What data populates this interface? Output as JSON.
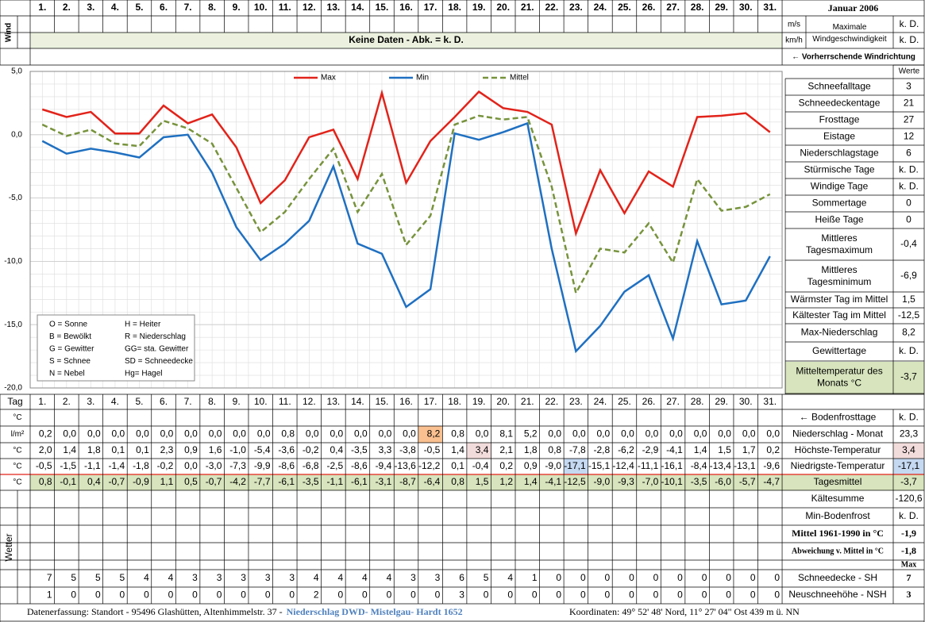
{
  "title": "Januar 2006",
  "wind": {
    "label": "Wind",
    "unit_ms": "m/s",
    "unit_kmh": "km/h",
    "max_label": [
      "Maximale",
      "Windgeschwindigkeit"
    ],
    "value_ms": "k. D.",
    "value_kmh": "k. D.",
    "no_data": "Keine Daten - Abk. = k. D.",
    "direction": "← Vorherrschende Windrichtung"
  },
  "chart_data": {
    "type": "line",
    "categories": [
      "1.",
      "2.",
      "3.",
      "4.",
      "5.",
      "6.",
      "7.",
      "8.",
      "9.",
      "10.",
      "11.",
      "12.",
      "13.",
      "14.",
      "15.",
      "16.",
      "17.",
      "18.",
      "19.",
      "20.",
      "21.",
      "22.",
      "23.",
      "24.",
      "25.",
      "26.",
      "27.",
      "28.",
      "29.",
      "30.",
      "31."
    ],
    "ylim": [
      -20,
      5
    ],
    "yticks": [
      {
        "value": 5,
        "label": "5,0"
      },
      {
        "value": 0,
        "label": "0,0"
      },
      {
        "value": -5,
        "label": "-5,0"
      },
      {
        "value": -10,
        "label": "-10,0"
      },
      {
        "value": -15,
        "label": "-15,0"
      },
      {
        "value": -20,
        "label": "-20,0"
      }
    ],
    "grid": true,
    "series": [
      {
        "name": "Max",
        "color": "#e2231a",
        "dashed": false,
        "values": [
          2.0,
          1.4,
          1.8,
          0.1,
          0.1,
          2.3,
          0.9,
          1.6,
          -1.0,
          -5.4,
          -3.6,
          -0.2,
          0.4,
          -3.5,
          3.3,
          -3.8,
          -0.5,
          1.4,
          3.4,
          2.1,
          1.8,
          0.8,
          -7.8,
          -2.8,
          -6.2,
          -2.9,
          -4.1,
          1.4,
          1.5,
          1.7,
          0.2
        ],
        "value_labels": [
          "2,0",
          "1,4",
          "1,8",
          "0,1",
          "0,1",
          "2,3",
          "0,9",
          "1,6",
          "-1,0",
          "-5,4",
          "-3,6",
          "-0,2",
          "0,4",
          "-3,5",
          "3,3",
          "-3,8",
          "-0,5",
          "1,4",
          "3,4",
          "2,1",
          "1,8",
          "0,8",
          "-7,8",
          "-2,8",
          "-6,2",
          "-2,9",
          "-4,1",
          "1,4",
          "1,5",
          "1,7",
          "0,2"
        ]
      },
      {
        "name": "Min",
        "color": "#1f70c1",
        "dashed": false,
        "values": [
          -0.5,
          -1.5,
          -1.1,
          -1.4,
          -1.8,
          -0.2,
          0.0,
          -3.0,
          -7.3,
          -9.9,
          -8.6,
          -6.8,
          -2.5,
          -8.6,
          -9.4,
          -13.6,
          -12.2,
          0.1,
          -0.4,
          0.2,
          0.9,
          -9.0,
          -17.1,
          -15.1,
          -12.4,
          -11.1,
          -16.1,
          -8.4,
          -13.4,
          -13.1,
          -9.6
        ],
        "value_labels": [
          "-0,5",
          "-1,5",
          "-1,1",
          "-1,4",
          "-1,8",
          "-0,2",
          "0,0",
          "-3,0",
          "-7,3",
          "-9,9",
          "-8,6",
          "-6,8",
          "-2,5",
          "-8,6",
          "-9,4",
          "-13,6",
          "-12,2",
          "0,1",
          "-0,4",
          "0,2",
          "0,9",
          "-9,0",
          "-17,1",
          "-15,1",
          "-12,4",
          "-11,1",
          "-16,1",
          "-8,4",
          "-13,4",
          "-13,1",
          "-9,6"
        ]
      },
      {
        "name": "Mittel",
        "color": "#77933c",
        "dashed": true,
        "values": [
          0.8,
          -0.1,
          0.4,
          -0.7,
          -0.9,
          1.1,
          0.5,
          -0.7,
          -4.2,
          -7.7,
          -6.1,
          -3.5,
          -1.1,
          -6.1,
          -3.1,
          -8.7,
          -6.4,
          0.8,
          1.5,
          1.2,
          1.4,
          -4.1,
          -12.5,
          -9.0,
          -9.3,
          -7.0,
          -10.1,
          -3.5,
          -6.0,
          -5.7,
          -4.7
        ],
        "value_labels": [
          "0,8",
          "-0,1",
          "0,4",
          "-0,7",
          "-0,9",
          "1,1",
          "0,5",
          "-0,7",
          "-4,2",
          "-7,7",
          "-6,1",
          "-3,5",
          "-1,1",
          "-6,1",
          "-3,1",
          "-8,7",
          "-6,4",
          "0,8",
          "1,5",
          "1,2",
          "1,4",
          "-4,1",
          "-12,5",
          "-9,0",
          "-9,3",
          "-7,0",
          "-10,1",
          "-3,5",
          "-6,0",
          "-5,7",
          "-4,7"
        ]
      }
    ]
  },
  "weather_codes": [
    [
      "O = Sonne",
      "H = Heiter"
    ],
    [
      "B = Bewölkt",
      "R = Niederschlag"
    ],
    [
      "G = Gewitter",
      "GG= sta. Gewitter"
    ],
    [
      "S = Schnee",
      "SD = Schneedecke"
    ],
    [
      "N = Nebel",
      "Hg= Hagel"
    ]
  ],
  "stats_header": "Werte",
  "stats": [
    {
      "label": "Schneefalltage",
      "value": "3"
    },
    {
      "label": "Schneedeckentage",
      "value": "21"
    },
    {
      "label": "Frosttage",
      "value": "27"
    },
    {
      "label": "Eistage",
      "value": "12"
    },
    {
      "label": "Niederschlagstage",
      "value": "6"
    },
    {
      "label": "Stürmische Tage",
      "value": "k. D."
    },
    {
      "label": "Windige Tage",
      "value": "k. D."
    },
    {
      "label": "Sommertage",
      "value": "0"
    },
    {
      "label": "Heiße Tage",
      "value": "0"
    },
    {
      "label": [
        "Mittleres",
        "Tagesmaximum"
      ],
      "value": "-0,4"
    },
    {
      "label": [
        "Mittleres",
        "Tagesminimum"
      ],
      "value": "-6,9"
    },
    {
      "label": "Wärmster Tag im Mittel",
      "value": "1,5"
    },
    {
      "label": "Kältester Tag im Mittel",
      "value": "-12,5"
    },
    {
      "label": "Max-Niederschlag",
      "value": "8,2"
    },
    {
      "label": "Gewittertage",
      "value": "k. D."
    },
    {
      "label": [
        "Mitteltemperatur des",
        "Monats °C"
      ],
      "value": "-3,7"
    }
  ],
  "table": {
    "tag_label": "Tag",
    "units": [
      "°C",
      "l/m²",
      "°C",
      "°C",
      "°C"
    ],
    "precipitation": [
      "0,2",
      "0,0",
      "0,0",
      "0,0",
      "0,0",
      "0,0",
      "0,0",
      "0,0",
      "0,0",
      "0,0",
      "0,8",
      "0,0",
      "0,0",
      "0,0",
      "0,0",
      "0,0",
      "8,2",
      "0,8",
      "0,0",
      "8,1",
      "5,2",
      "0,0",
      "0,0",
      "0,0",
      "0,0",
      "0,0",
      "0,0",
      "0,0",
      "0,0",
      "0,0",
      "0,0"
    ],
    "right_rows": [
      {
        "label": "← Bodenfrosttage",
        "value": "k. D."
      },
      {
        "label": "Niederschlag - Monat",
        "value": "23,3"
      },
      {
        "label": "Höchste-Temperatur",
        "value": "3,4"
      },
      {
        "label": "Niedrigste-Temperatur",
        "value": "-17,1"
      },
      {
        "label": "Tagesmittel",
        "value": "-3,7"
      },
      {
        "label": "Kältesumme",
        "value": "-120,6"
      },
      {
        "label": "Min-Bodenfrost",
        "value": "k. D."
      },
      {
        "label": "Mittel 1961-1990 in °C",
        "value": "-1,9"
      },
      {
        "label": "Abweichung v. Mittel in °C",
        "value": "-1,8"
      }
    ],
    "weather_label": "Wetter",
    "max_label": "Max",
    "sh_label": "Schneedecke - SH",
    "sh_max": 7,
    "sh": [
      7,
      5,
      5,
      5,
      4,
      4,
      3,
      3,
      3,
      3,
      3,
      4,
      4,
      4,
      4,
      3,
      3,
      6,
      5,
      4,
      1,
      0,
      0,
      0,
      0,
      0,
      0,
      0,
      0,
      0,
      0
    ],
    "nsh_label": "Neuschneehöhe - NSH",
    "nsh_max": 3,
    "nsh": [
      1,
      0,
      0,
      0,
      0,
      0,
      0,
      0,
      0,
      0,
      0,
      2,
      0,
      0,
      0,
      0,
      0,
      3,
      0,
      0,
      0,
      0,
      0,
      0,
      0,
      0,
      0,
      0,
      0,
      0,
      0
    ]
  },
  "footer": {
    "left": "Datenerfassung:  Standort -  95496  Glashütten, Altenhimmelstr. 37 -",
    "source": "Niederschlag DWD- Mistelgau- Hardt 1652",
    "right": "Koordinaten:  49° 52' 48' Nord,    11° 27' 04\" Ost    439 m ü. NN"
  }
}
